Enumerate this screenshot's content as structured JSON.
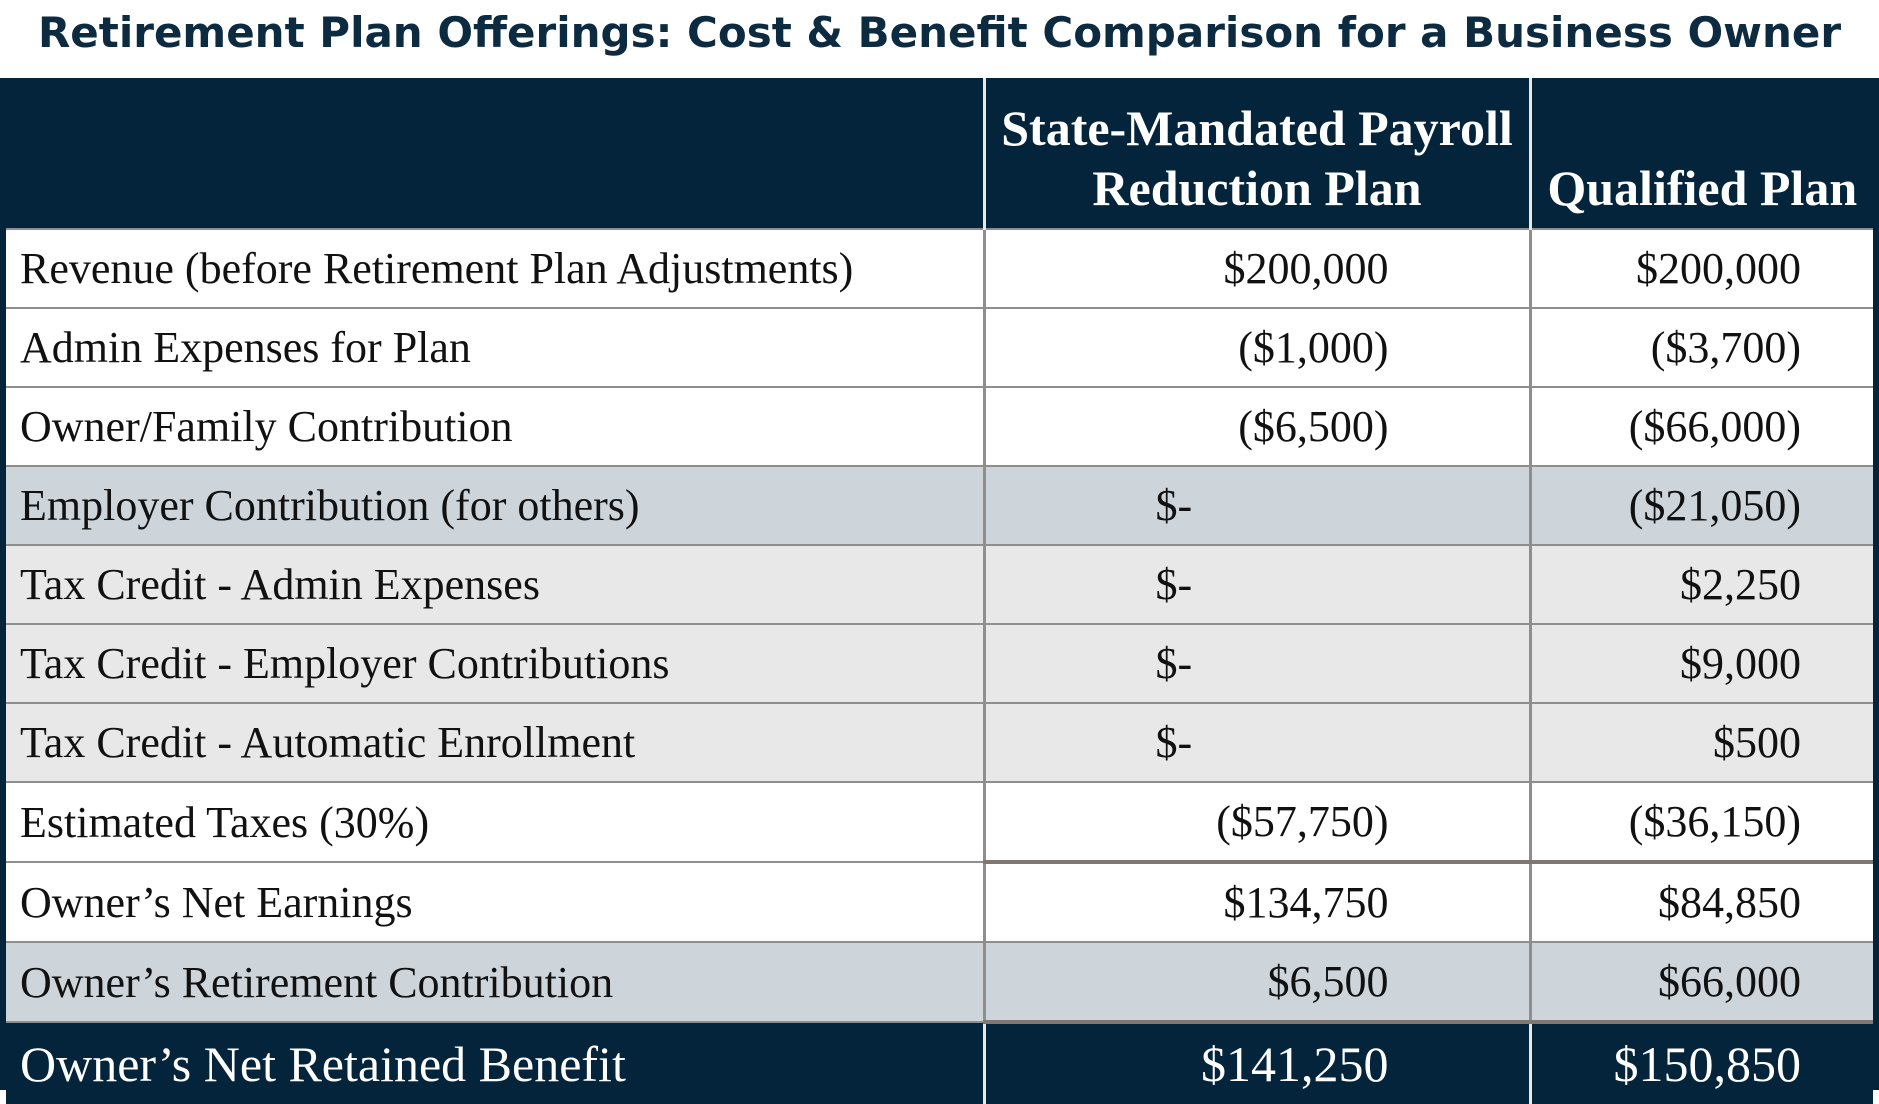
{
  "title": "Retirement Plan Offerings: Cost & Benefit Comparison for a Business Owner",
  "columns": {
    "label": "",
    "state_plan": "State-Mandated Payroll Reduction Plan",
    "qualified_plan": "Qualified Plan"
  },
  "rows": [
    {
      "label": "Revenue (before Retirement Plan Adjustments)",
      "state": "$200,000",
      "qualified": "$200,000"
    },
    {
      "label": "Admin Expenses for Plan",
      "state": "($1,000)",
      "qualified": "($3,700)"
    },
    {
      "label": "Owner/Family Contribution",
      "state": "($6,500)",
      "qualified": "($66,000)"
    },
    {
      "label": "Employer Contribution (for others)",
      "state": "$-",
      "qualified": "($21,050)"
    },
    {
      "label": "Tax Credit - Admin Expenses",
      "state": "$-",
      "qualified": "$2,250"
    },
    {
      "label": "Tax Credit - Employer Contributions",
      "state": "$-",
      "qualified": "$9,000"
    },
    {
      "label": "Tax Credit - Automatic Enrollment",
      "state": "$-",
      "qualified": "$500"
    },
    {
      "label": "Estimated Taxes (30%)",
      "state": "($57,750)",
      "qualified": "($36,150)"
    },
    {
      "label": "Owner’s Net Earnings",
      "state": "$134,750",
      "qualified": "$84,850"
    },
    {
      "label": "Owner’s Retirement Contribution",
      "state": "$6,500",
      "qualified": "$66,000"
    }
  ],
  "total": {
    "label": "Owner’s Net Retained Benefit",
    "state": "$141,250",
    "qualified": "$150,850"
  },
  "colors": {
    "navy": "#03243a",
    "title_text": "#0c2a40",
    "blue_row": "#cdd5db",
    "grey_row": "#e8e8e8",
    "white_row": "#ffffff"
  }
}
